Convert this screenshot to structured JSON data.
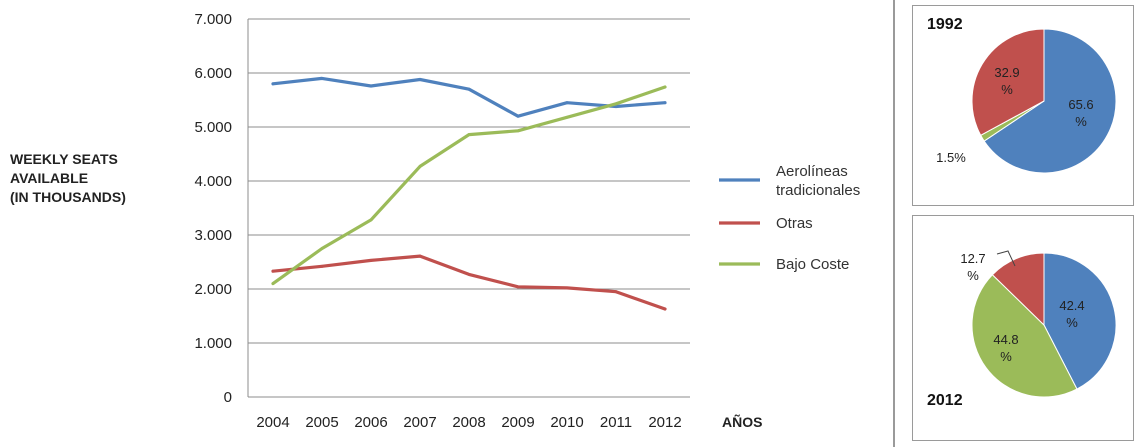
{
  "colors": {
    "tradicionales": "#4f81bd",
    "otras": "#c0504d",
    "bajo_coste": "#9bbb59",
    "grid": "#8c8c8c"
  },
  "y_axis_label_lines": [
    "WEEKLY SEATS",
    "AVAILABLE",
    "(IN THOUSANDS)"
  ],
  "chart_data": [
    {
      "type": "line",
      "xlabel": "AÑOS",
      "ylabel": "WEEKLY SEATS AVAILABLE (IN THOUSANDS)",
      "x": [
        "2004",
        "2005",
        "2006",
        "2007",
        "2008",
        "2009",
        "2010",
        "2011",
        "2012"
      ],
      "ylim": [
        0,
        7000
      ],
      "yticks": [
        0,
        1000,
        2000,
        3000,
        4000,
        5000,
        6000,
        7000
      ],
      "ytick_labels": [
        "0",
        "1.000",
        "2.000",
        "3.000",
        "4.000",
        "5.000",
        "6.000",
        "7.000"
      ],
      "grid": true,
      "legend_position": "right",
      "series": [
        {
          "name": "Aerolíneas tradicionales",
          "legend_lines": [
            "Aerolíneas",
            "tradicionales"
          ],
          "color": "#4f81bd",
          "values": [
            5800,
            5900,
            5760,
            5880,
            5700,
            5200,
            5450,
            5380,
            5450
          ]
        },
        {
          "name": "Otras",
          "legend_lines": [
            "Otras"
          ],
          "color": "#c0504d",
          "values": [
            2330,
            2420,
            2530,
            2610,
            2270,
            2040,
            2020,
            1950,
            1630
          ]
        },
        {
          "name": "Bajo Coste",
          "legend_lines": [
            "Bajo Coste"
          ],
          "color": "#9bbb59",
          "values": [
            2100,
            2750,
            3280,
            4270,
            4860,
            4930,
            5180,
            5430,
            5740
          ]
        }
      ]
    },
    {
      "type": "pie",
      "title": "1992",
      "slices": [
        {
          "series": "Aerolíneas tradicionales",
          "value": 65.6,
          "label_lines": [
            "65.6",
            "%"
          ],
          "color": "#4f81bd"
        },
        {
          "series": "Bajo Coste",
          "value": 1.5,
          "label_lines": [
            "1.5%"
          ],
          "color": "#9bbb59"
        },
        {
          "series": "Otras",
          "value": 32.9,
          "label_lines": [
            "32.9",
            "%"
          ],
          "color": "#c0504d"
        }
      ]
    },
    {
      "type": "pie",
      "title": "2012",
      "slices": [
        {
          "series": "Aerolíneas tradicionales",
          "value": 42.4,
          "label_lines": [
            "42.4",
            "%"
          ],
          "color": "#4f81bd"
        },
        {
          "series": "Bajo Coste",
          "value": 44.8,
          "label_lines": [
            "44.8",
            "%"
          ],
          "color": "#9bbb59"
        },
        {
          "series": "Otras",
          "value": 12.7,
          "label_lines": [
            "12.7",
            "%"
          ],
          "color": "#c0504d"
        }
      ]
    }
  ]
}
